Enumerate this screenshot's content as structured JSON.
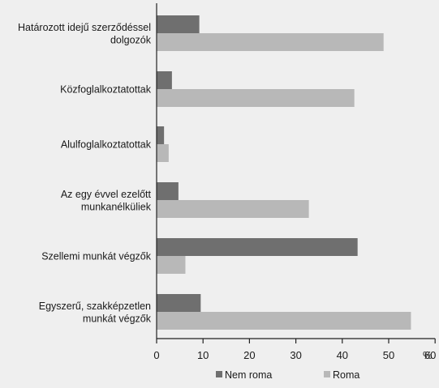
{
  "chart_data": {
    "type": "bar",
    "orientation": "horizontal",
    "categories": [
      [
        "Határozott idejű szerződéssel",
        "dolgozók"
      ],
      [
        "Közfoglalkoztatottak"
      ],
      [
        "Alulfoglalkoztatottak"
      ],
      [
        "Az egy évvel ezelőtt",
        "munkanélküliek"
      ],
      [
        "Szellemi munkát végzők"
      ],
      [
        "Egyszerű, szakképzetlen",
        "munkát végzők"
      ]
    ],
    "series": [
      {
        "name": "Nem roma",
        "color": "#6f6f6f",
        "values": [
          9.2,
          3.3,
          1.6,
          4.7,
          43.3,
          9.5
        ]
      },
      {
        "name": "Roma",
        "color": "#b8b8b8",
        "values": [
          48.9,
          42.6,
          2.6,
          32.8,
          6.2,
          54.8
        ]
      }
    ],
    "xlim": [
      0,
      60
    ],
    "x_ticks": [
      "0",
      "10",
      "20",
      "30",
      "40",
      "50",
      "60"
    ],
    "x_unit": "%",
    "grid": false,
    "legend_position": "bottom"
  }
}
